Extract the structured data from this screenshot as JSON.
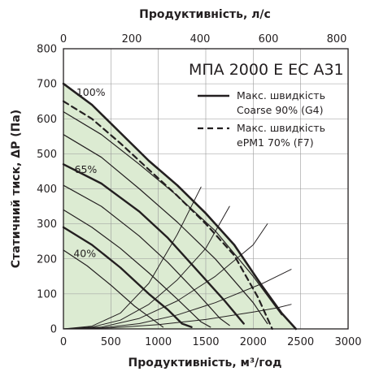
{
  "chart_data": {
    "type": "line",
    "title": "МПА 2000 E EC A31",
    "xlabel": "Продуктивність, м³/год",
    "x2label": "Продуктивність, л/с",
    "ylabel": "Статичний тиск, ΔP (Па)",
    "xlim": [
      0,
      3000
    ],
    "ylim": [
      0,
      800
    ],
    "x2lim": [
      0,
      833.33
    ],
    "x_ticks": [
      "0",
      "500",
      "1000",
      "1500",
      "2000",
      "2500",
      "3000"
    ],
    "x2_ticks": [
      "0",
      "200",
      "400",
      "600",
      "800"
    ],
    "y_ticks": [
      "0",
      "100",
      "200",
      "300",
      "400",
      "500",
      "600",
      "700",
      "800"
    ],
    "grid": true,
    "colors": {
      "fill": "#dcebd2",
      "line": "#231f20",
      "grid": "#9a9a9a"
    },
    "legend": [
      {
        "label_line1": "Макс. швидкість",
        "label_line2": "Coarse 90% (G4)",
        "style": "solid"
      },
      {
        "label_line1": "Макс. швидкість",
        "label_line2": "ePM1 70% (F7)",
        "style": "dashed"
      }
    ],
    "legend_placement": "top-right",
    "speed_labels": [
      {
        "text": "100%",
        "x": 170,
        "y": 675
      },
      {
        "text": "65%",
        "x": 150,
        "y": 455
      },
      {
        "text": "40%",
        "x": 140,
        "y": 215
      }
    ],
    "series": [
      {
        "name": "Макс. швидкість Coarse 90% (G4)",
        "style": "solid-thick",
        "x": [
          0,
          300,
          600,
          900,
          1200,
          1500,
          1800,
          2100,
          2300,
          2450
        ],
        "y": [
          700,
          640,
          560,
          480,
          410,
          330,
          240,
          120,
          45,
          0
        ]
      },
      {
        "name": "Макс. швидкість ePM1 70% (F7)",
        "style": "dashed",
        "x": [
          0,
          300,
          600,
          900,
          1200,
          1500,
          1800,
          2050,
          2200
        ],
        "y": [
          650,
          600,
          530,
          455,
          380,
          300,
          210,
          90,
          0
        ]
      },
      {
        "style": "speed-thin",
        "x": [
          0,
          400,
          800,
          1200,
          1600,
          2000,
          2300
        ],
        "y": [
          620,
          555,
          470,
          380,
          280,
          150,
          40
        ]
      },
      {
        "style": "speed-thin",
        "x": [
          0,
          400,
          800,
          1200,
          1600,
          2000,
          2150
        ],
        "y": [
          555,
          490,
          400,
          305,
          200,
          75,
          15
        ]
      },
      {
        "style": "speed-thick",
        "x": [
          0,
          400,
          800,
          1100,
          1400,
          1700,
          1900
        ],
        "y": [
          470,
          415,
          335,
          260,
          170,
          80,
          15
        ]
      },
      {
        "style": "speed-thin",
        "x": [
          0,
          400,
          800,
          1100,
          1400,
          1650,
          1750
        ],
        "y": [
          410,
          350,
          265,
          190,
          105,
          30,
          10
        ]
      },
      {
        "style": "speed-thin",
        "x": [
          0,
          300,
          600,
          900,
          1200,
          1450,
          1550
        ],
        "y": [
          340,
          290,
          230,
          160,
          85,
          20,
          5
        ]
      },
      {
        "style": "speed-thick",
        "x": [
          0,
          300,
          600,
          900,
          1100,
          1250,
          1350
        ],
        "y": [
          290,
          240,
          175,
          100,
          55,
          15,
          5
        ]
      },
      {
        "style": "speed-thin",
        "x": [
          0,
          250,
          500,
          750,
          950,
          1050
        ],
        "y": [
          225,
          180,
          125,
          65,
          25,
          5
        ]
      },
      {
        "style": "system",
        "x": [
          0,
          300,
          600,
          900,
          1200,
          1450
        ],
        "y": [
          0,
          8,
          45,
          130,
          270,
          405
        ]
      },
      {
        "style": "system",
        "x": [
          0,
          300,
          600,
          900,
          1200,
          1500,
          1750
        ],
        "y": [
          0,
          5,
          25,
          70,
          140,
          230,
          350
        ]
      },
      {
        "style": "system",
        "x": [
          0,
          400,
          800,
          1200,
          1600,
          2000,
          2150
        ],
        "y": [
          0,
          5,
          30,
          80,
          150,
          240,
          300
        ]
      },
      {
        "style": "system",
        "x": [
          0,
          400,
          800,
          1200,
          1600,
          2100,
          2400
        ],
        "y": [
          0,
          3,
          15,
          40,
          75,
          130,
          170
        ]
      },
      {
        "style": "system",
        "x": [
          0,
          500,
          1000,
          1500,
          2000,
          2250,
          2400
        ],
        "y": [
          0,
          3,
          12,
          27,
          48,
          60,
          70
        ]
      }
    ]
  }
}
